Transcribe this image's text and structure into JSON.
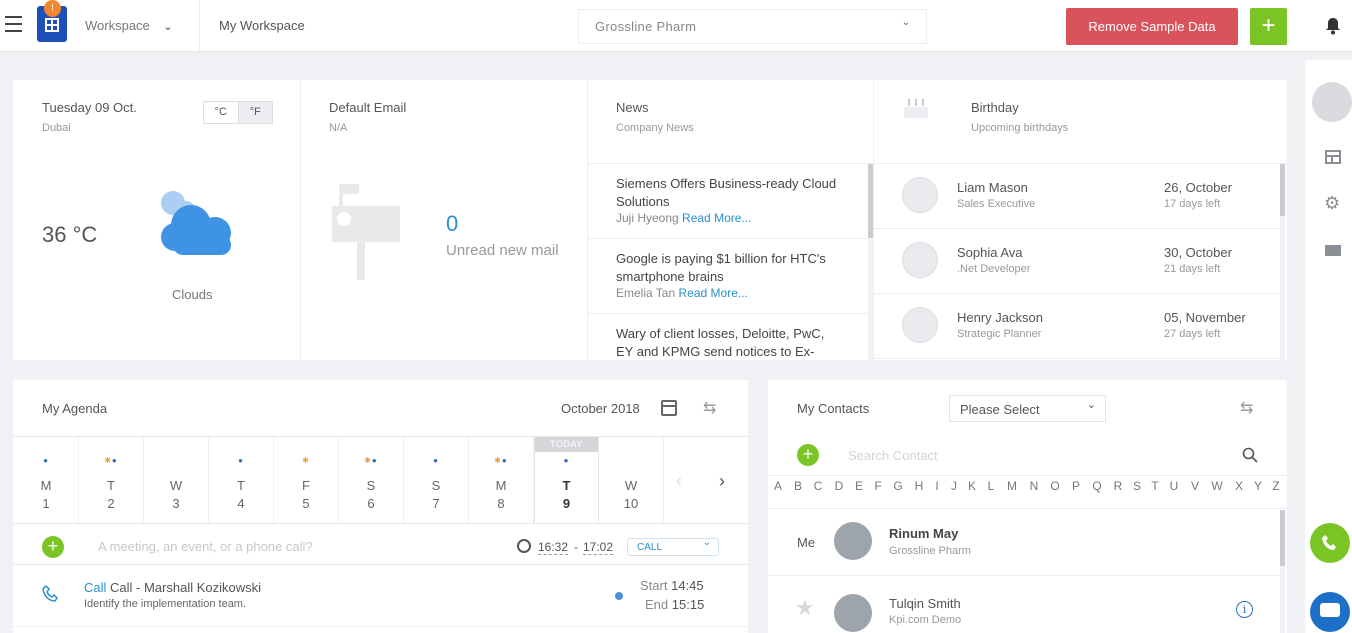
{
  "header": {
    "workspace_label": "Workspace",
    "breadcrumb": "My Workspace",
    "company_select": "Grossline Pharm",
    "remove_button": "Remove Sample Data",
    "add_button": "+",
    "logo_badge": "!"
  },
  "weather": {
    "date": "Tuesday 09 Oct.",
    "city": "Dubai",
    "unit_c": "°C",
    "unit_f": "°F",
    "temp": "36 °C",
    "condition": "Clouds"
  },
  "email": {
    "title": "Default Email",
    "value": "N/A",
    "count": "0",
    "label": "Unread new mail"
  },
  "news": {
    "title": "News",
    "subtitle": "Company News",
    "read_more": "Read More...",
    "items": [
      {
        "title": "Siemens Offers Business-ready Cloud Solutions",
        "author": "Juji Hyeong"
      },
      {
        "title": "Google is paying $1 billion for HTC's smartphone brains",
        "author": "Emelia Tan"
      },
      {
        "title": "Wary of client losses, Deloitte, PwC, EY and KPMG send notices to Ex-",
        "author": ""
      }
    ]
  },
  "birthday": {
    "title": "Birthday",
    "subtitle": "Upcoming birthdays",
    "people": [
      {
        "name": "Liam Mason",
        "role": "Sales Executive",
        "date": "26, October",
        "left": "17 days left"
      },
      {
        "name": "Sophia Ava",
        "role": ".Net Developer",
        "date": "30, October",
        "left": "21 days left"
      },
      {
        "name": "Henry Jackson",
        "role": "Strategic Planner",
        "date": "05, November",
        "left": "27 days left"
      }
    ]
  },
  "agenda": {
    "title": "My Agenda",
    "month": "October 2018",
    "today_label": "TODAY",
    "days": [
      {
        "dow": "M",
        "num": "1"
      },
      {
        "dow": "T",
        "num": "2"
      },
      {
        "dow": "W",
        "num": "3"
      },
      {
        "dow": "T",
        "num": "4"
      },
      {
        "dow": "F",
        "num": "5"
      },
      {
        "dow": "S",
        "num": "6"
      },
      {
        "dow": "S",
        "num": "7"
      },
      {
        "dow": "M",
        "num": "8"
      },
      {
        "dow": "T",
        "num": "9"
      },
      {
        "dow": "W",
        "num": "10"
      }
    ],
    "input_placeholder": "A meeting, an event, or a phone call?",
    "time_start": "16:32",
    "time_sep": "-",
    "time_end": "17:02",
    "type_select": "CALL",
    "event": {
      "type": "Call",
      "title": "Call - Marshall Kozikowski",
      "desc": "Identify the implementation team.",
      "start_label": "Start",
      "start": "14:45",
      "end_label": "End",
      "end": "15:15"
    }
  },
  "contacts": {
    "title": "My Contacts",
    "select": "Please Select",
    "search_placeholder": "Search Contact",
    "letters": [
      "A",
      "B",
      "C",
      "D",
      "E",
      "F",
      "G",
      "H",
      "I",
      "J",
      "K",
      "L",
      "M",
      "N",
      "O",
      "P",
      "Q",
      "R",
      "S",
      "T",
      "U",
      "V",
      "W",
      "X",
      "Y",
      "Z"
    ],
    "me_label": "Me",
    "list": [
      {
        "name": "Rinum May",
        "company": "Grossline Pharm"
      },
      {
        "name": "Tulqin Smith",
        "company": "Kpi.com Demo"
      }
    ]
  },
  "colors": {
    "accent_blue": "#2a8fd0",
    "green": "#7ac525",
    "red": "#d9534f"
  }
}
